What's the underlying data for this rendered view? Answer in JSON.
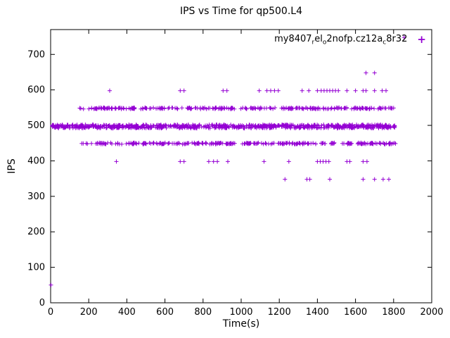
{
  "chart_data": {
    "type": "scatter",
    "title": "IPS vs Time for qp500.L4",
    "xlabel": "Time(s)",
    "ylabel": "IPS",
    "xlim": [
      0,
      2000
    ],
    "ylim": [
      0,
      770
    ],
    "xticks": [
      0,
      200,
      400,
      600,
      800,
      1000,
      1200,
      1400,
      1600,
      1800,
      2000
    ],
    "yticks": [
      0,
      100,
      200,
      300,
      400,
      500,
      600,
      700
    ],
    "grid": false,
    "legend_position": "top-right-inside",
    "marker": "plus",
    "marker_color": "#9400d3",
    "series": [
      {
        "name": "my8407_rel_o2nofp.cz12a_c8r32",
        "legend_segments": [
          {
            "t": "my8407",
            "sub": false
          },
          {
            "t": "r",
            "sub": true
          },
          {
            "t": "el",
            "sub": false
          },
          {
            "t": "o",
            "sub": true
          },
          {
            "t": "2nofp.cz12a",
            "sub": false
          },
          {
            "t": "c",
            "sub": true
          },
          {
            "t": "8r32",
            "sub": false
          }
        ],
        "bands": [
          {
            "y": 497,
            "x_start": 0,
            "x_end": 1810,
            "count": 720,
            "y_jitter": 5
          },
          {
            "y": 548,
            "x_start": 140,
            "x_end": 1810,
            "count": 265,
            "y_jitter": 2
          },
          {
            "y": 449,
            "x_start": 150,
            "x_end": 1810,
            "count": 265,
            "y_jitter": 2
          }
        ],
        "points": [
          [
            2,
            50
          ],
          [
            310,
            598
          ],
          [
            680,
            598
          ],
          [
            700,
            598
          ],
          [
            905,
            598
          ],
          [
            925,
            598
          ],
          [
            1095,
            598
          ],
          [
            1135,
            598
          ],
          [
            1155,
            598
          ],
          [
            1175,
            598
          ],
          [
            1195,
            598
          ],
          [
            1320,
            598
          ],
          [
            1355,
            598
          ],
          [
            1400,
            598
          ],
          [
            1420,
            598
          ],
          [
            1435,
            598
          ],
          [
            1450,
            598
          ],
          [
            1465,
            598
          ],
          [
            1480,
            598
          ],
          [
            1495,
            598
          ],
          [
            1510,
            598
          ],
          [
            1555,
            598
          ],
          [
            1600,
            598
          ],
          [
            1640,
            598
          ],
          [
            1655,
            598
          ],
          [
            1700,
            598
          ],
          [
            1740,
            598
          ],
          [
            1760,
            598
          ],
          [
            1655,
            648
          ],
          [
            1700,
            648
          ],
          [
            1855,
            748
          ],
          [
            345,
            398
          ],
          [
            680,
            398
          ],
          [
            700,
            398
          ],
          [
            830,
            398
          ],
          [
            855,
            398
          ],
          [
            875,
            398
          ],
          [
            930,
            398
          ],
          [
            1120,
            398
          ],
          [
            1250,
            398
          ],
          [
            1400,
            398
          ],
          [
            1415,
            398
          ],
          [
            1430,
            398
          ],
          [
            1445,
            398
          ],
          [
            1460,
            398
          ],
          [
            1555,
            398
          ],
          [
            1570,
            398
          ],
          [
            1640,
            398
          ],
          [
            1660,
            398
          ],
          [
            1230,
            348
          ],
          [
            1345,
            348
          ],
          [
            1360,
            348
          ],
          [
            1465,
            348
          ],
          [
            1640,
            348
          ],
          [
            1700,
            348
          ],
          [
            1745,
            348
          ],
          [
            1775,
            348
          ]
        ]
      }
    ]
  }
}
